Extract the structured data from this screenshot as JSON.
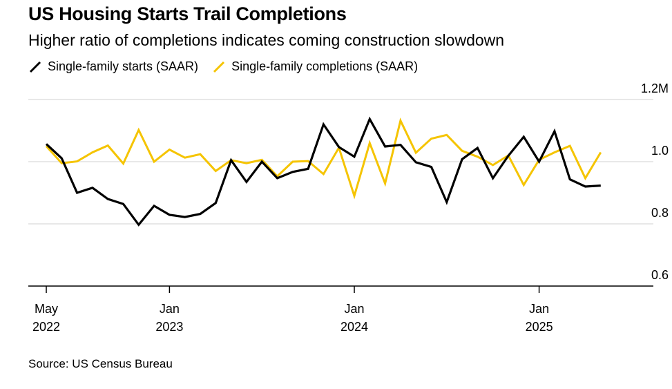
{
  "chart_data": {
    "type": "line",
    "title": "US Housing Starts Trail Completions",
    "subtitle": "Higher ratio of completions indicates coming construction slowdown",
    "source": "Source: US Census Bureau",
    "xlabel": "",
    "ylabel": "",
    "ylim": [
      0.6,
      1.2
    ],
    "y_ticks": [
      {
        "value": 1.2,
        "label": "1.2M"
      },
      {
        "value": 1.0,
        "label": "1.0"
      },
      {
        "value": 0.8,
        "label": "0.8"
      },
      {
        "value": 0.6,
        "label": "0.6"
      }
    ],
    "x_ticks": [
      {
        "index": 0,
        "line1": "May",
        "line2": "2022"
      },
      {
        "index": 8,
        "line1": "Jan",
        "line2": "2023"
      },
      {
        "index": 20,
        "line1": "Jan",
        "line2": "2024"
      },
      {
        "index": 32,
        "line1": "Jan",
        "line2": "2025"
      }
    ],
    "x": [
      "2022-05",
      "2022-06",
      "2022-07",
      "2022-08",
      "2022-09",
      "2022-10",
      "2022-11",
      "2022-12",
      "2023-01",
      "2023-02",
      "2023-03",
      "2023-04",
      "2023-05",
      "2023-06",
      "2023-07",
      "2023-08",
      "2023-09",
      "2023-10",
      "2023-11",
      "2023-12",
      "2024-01",
      "2024-02",
      "2024-03",
      "2024-04",
      "2024-05",
      "2024-06",
      "2024-07",
      "2024-08",
      "2024-09",
      "2024-10",
      "2024-11",
      "2024-12",
      "2025-01",
      "2025-02",
      "2025-03",
      "2025-04",
      "2025-05",
      "2025-06"
    ],
    "series": [
      {
        "name": "Single-family starts (SAAR)",
        "color": "#000000",
        "values": [
          1.057,
          1.011,
          0.9,
          0.916,
          0.88,
          0.864,
          0.797,
          0.858,
          0.829,
          0.822,
          0.832,
          0.867,
          1.005,
          0.935,
          1.0,
          0.947,
          0.967,
          0.977,
          1.12,
          1.047,
          1.016,
          1.137,
          1.049,
          1.054,
          0.998,
          0.983,
          0.87,
          1.008,
          1.044,
          0.947,
          1.019,
          1.08,
          1.0,
          1.098,
          0.943,
          0.92,
          0.923,
          null
        ]
      },
      {
        "name": "Single-family completions (SAAR)",
        "color": "#f5c400",
        "values": [
          1.05,
          0.995,
          1.001,
          1.03,
          1.052,
          0.994,
          1.102,
          1.0,
          1.039,
          1.013,
          1.024,
          0.97,
          1.005,
          0.995,
          1.006,
          0.953,
          1.0,
          1.002,
          0.96,
          1.045,
          0.89,
          1.06,
          0.93,
          1.132,
          1.029,
          1.074,
          1.086,
          1.035,
          1.016,
          0.989,
          1.02,
          0.925,
          1.006,
          1.03,
          1.051,
          0.947,
          1.03,
          null
        ]
      }
    ]
  }
}
